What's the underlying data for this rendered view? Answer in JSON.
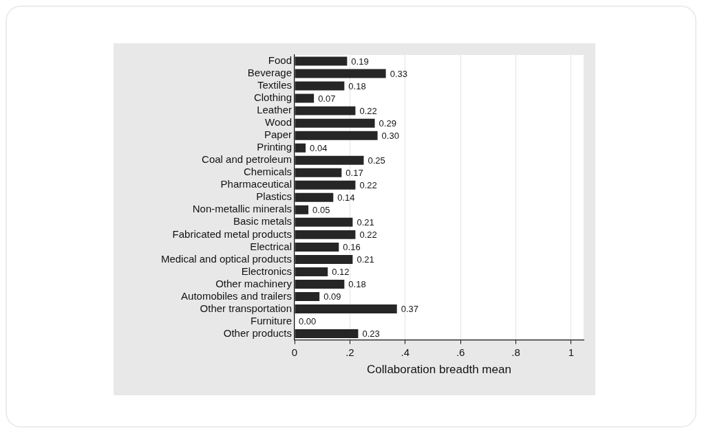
{
  "chart_data": {
    "type": "bar",
    "orientation": "horizontal",
    "categories": [
      "Food",
      "Beverage",
      "Textiles",
      "Clothing",
      "Leather",
      "Wood",
      "Paper",
      "Printing",
      "Coal and petroleum",
      "Chemicals",
      "Pharmaceutical",
      "Plastics",
      "Non-metallic minerals",
      "Basic metals",
      "Fabricated metal products",
      "Electrical",
      "Medical and optical products",
      "Electronics",
      "Other machinery",
      "Automobiles and trailers",
      "Other transportation",
      "Furniture",
      "Other products"
    ],
    "values": [
      0.19,
      0.33,
      0.18,
      0.07,
      0.22,
      0.29,
      0.3,
      0.04,
      0.25,
      0.17,
      0.22,
      0.14,
      0.05,
      0.21,
      0.22,
      0.16,
      0.21,
      0.12,
      0.18,
      0.09,
      0.37,
      0.0,
      0.23
    ],
    "value_labels": [
      "0.19",
      "0.33",
      "0.18",
      "0.07",
      "0.22",
      "0.29",
      "0.30",
      "0.04",
      "0.25",
      "0.17",
      "0.22",
      "0.14",
      "0.05",
      "0.21",
      "0.22",
      "0.16",
      "0.21",
      "0.12",
      "0.18",
      "0.09",
      "0.37",
      "0.00",
      "0.23"
    ],
    "color": "#262626",
    "xlabel": "Collaboration breadth mean",
    "xlim": [
      0,
      1.045
    ],
    "xticks": [
      0,
      {
        "value": 0.2,
        "label": ".2"
      },
      {
        "value": 0.4,
        "label": ".4"
      },
      {
        "value": 0.6,
        "label": ".6"
      },
      {
        "value": 0.8,
        "label": ".8"
      },
      1
    ],
    "grid": "x",
    "legend": false
  }
}
